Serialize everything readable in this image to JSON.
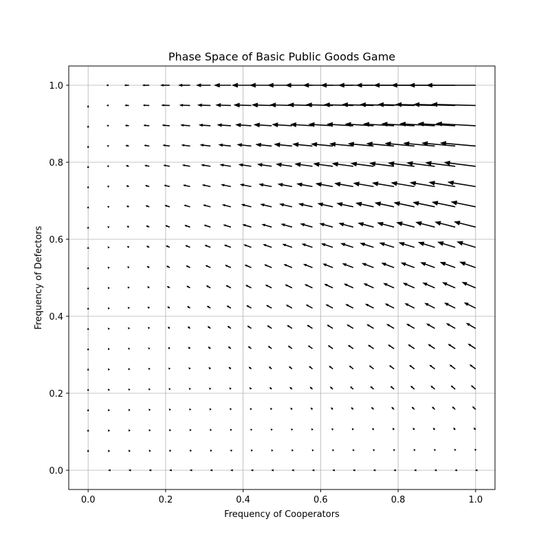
{
  "chart_data": {
    "type": "quiver",
    "title": "Phase Space of Basic Public Goods Game",
    "xlabel": "Frequency of Cooperators",
    "ylabel": "Frequency of Defectors",
    "xlim": [
      -0.05,
      1.05
    ],
    "ylim": [
      -0.05,
      1.05
    ],
    "xticks": [
      "0.0",
      "0.2",
      "0.4",
      "0.6",
      "0.8",
      "1.0"
    ],
    "yticks": [
      "0.0",
      "0.2",
      "0.4",
      "0.6",
      "0.8",
      "1.0"
    ],
    "grid": true,
    "legend": "none",
    "grid_points": 20,
    "grid_range": [
      0.0,
      1.0
    ],
    "field_description": "arrows point up-left in the lower region and predominantly leftward near the top; magnitude grows with cooperator and defector frequency"
  },
  "colors": {
    "arrow": "#000000",
    "grid": "#b0b0b0",
    "axes": "#000000",
    "background": "#ffffff"
  }
}
